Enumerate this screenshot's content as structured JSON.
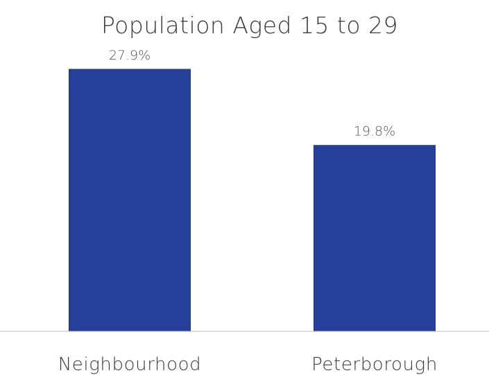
{
  "chart_data": {
    "type": "bar",
    "title": "Population Aged 15 to 29",
    "categories": [
      "Neighbourhood",
      "Peterborough"
    ],
    "values": [
      27.9,
      19.8
    ],
    "value_labels": [
      "27.9%",
      "19.8%"
    ],
    "unit": "%",
    "ylim": [
      0,
      30
    ],
    "grid": false,
    "legend": "none",
    "colors": {
      "bar": "#25409a",
      "bar_stroke": "#1d3587",
      "axis": "#bcbcbc",
      "text": "#3a3a3a"
    }
  }
}
